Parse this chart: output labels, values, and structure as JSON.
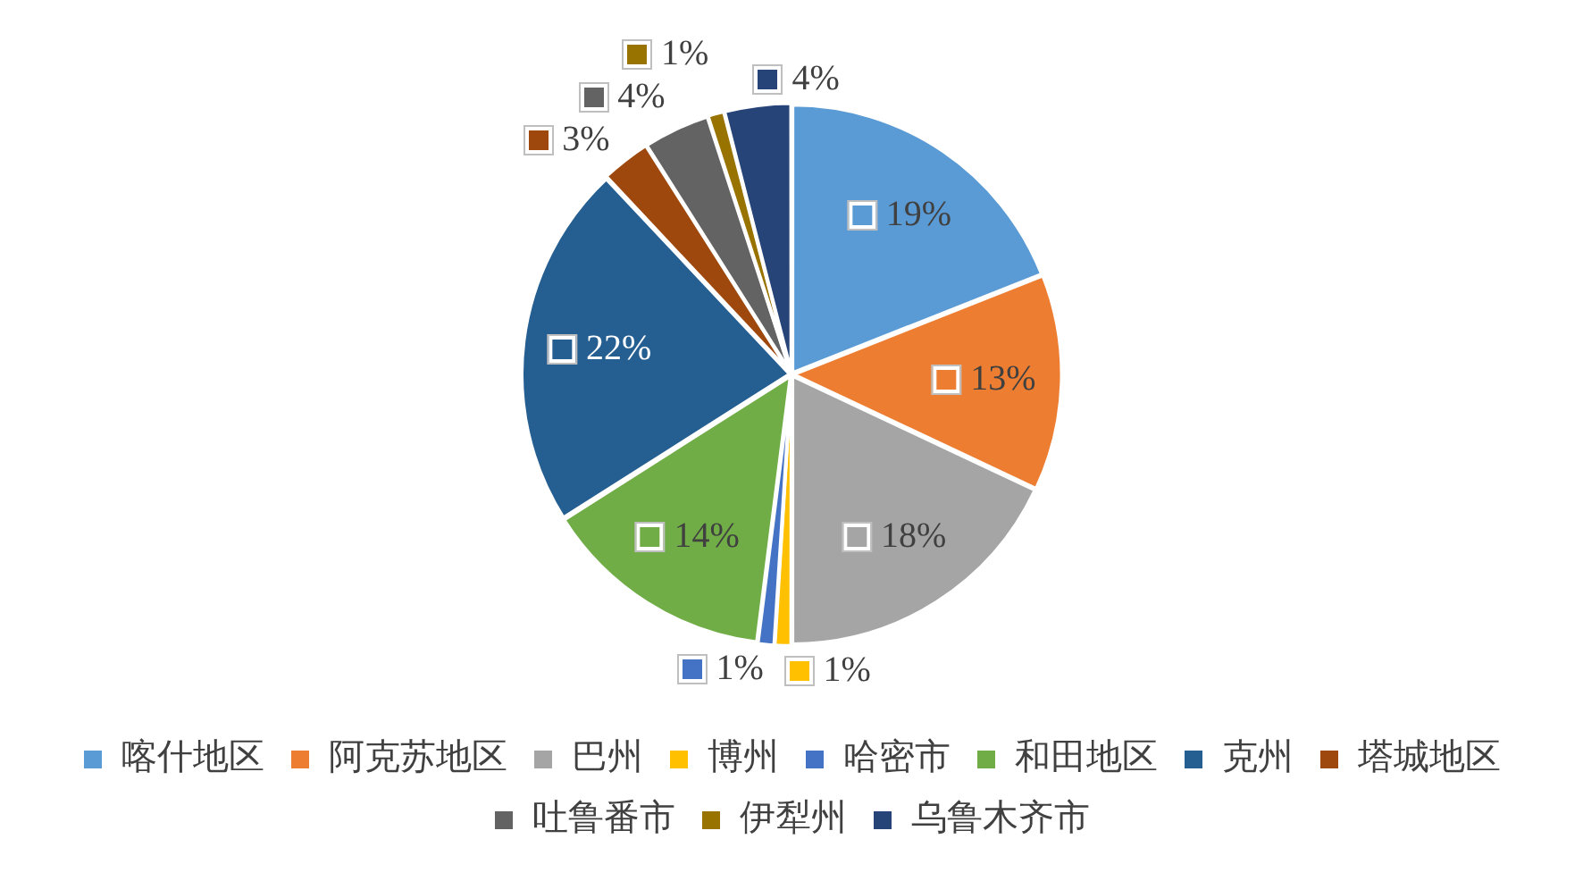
{
  "chart_data": {
    "type": "pie",
    "categories": [
      "喀什地区",
      "阿克苏地区",
      "巴州",
      "博州",
      "哈密市",
      "和田地区",
      "克州",
      "塔城地区",
      "吐鲁番市",
      "伊犁州",
      "乌鲁木齐市"
    ],
    "values": [
      19,
      13,
      18,
      1,
      1,
      14,
      22,
      3,
      4,
      1,
      4
    ],
    "value_labels": [
      "19%",
      "13%",
      "18%",
      "1%",
      "1%",
      "14%",
      "22%",
      "3%",
      "4%",
      "1%",
      "4%"
    ],
    "colors": [
      "#5b9bd5",
      "#ed7d31",
      "#a5a5a5",
      "#ffc000",
      "#4472c4",
      "#70ad47",
      "#255e91",
      "#9e480e",
      "#636363",
      "#997300",
      "#264478"
    ],
    "legend": "bottom"
  }
}
